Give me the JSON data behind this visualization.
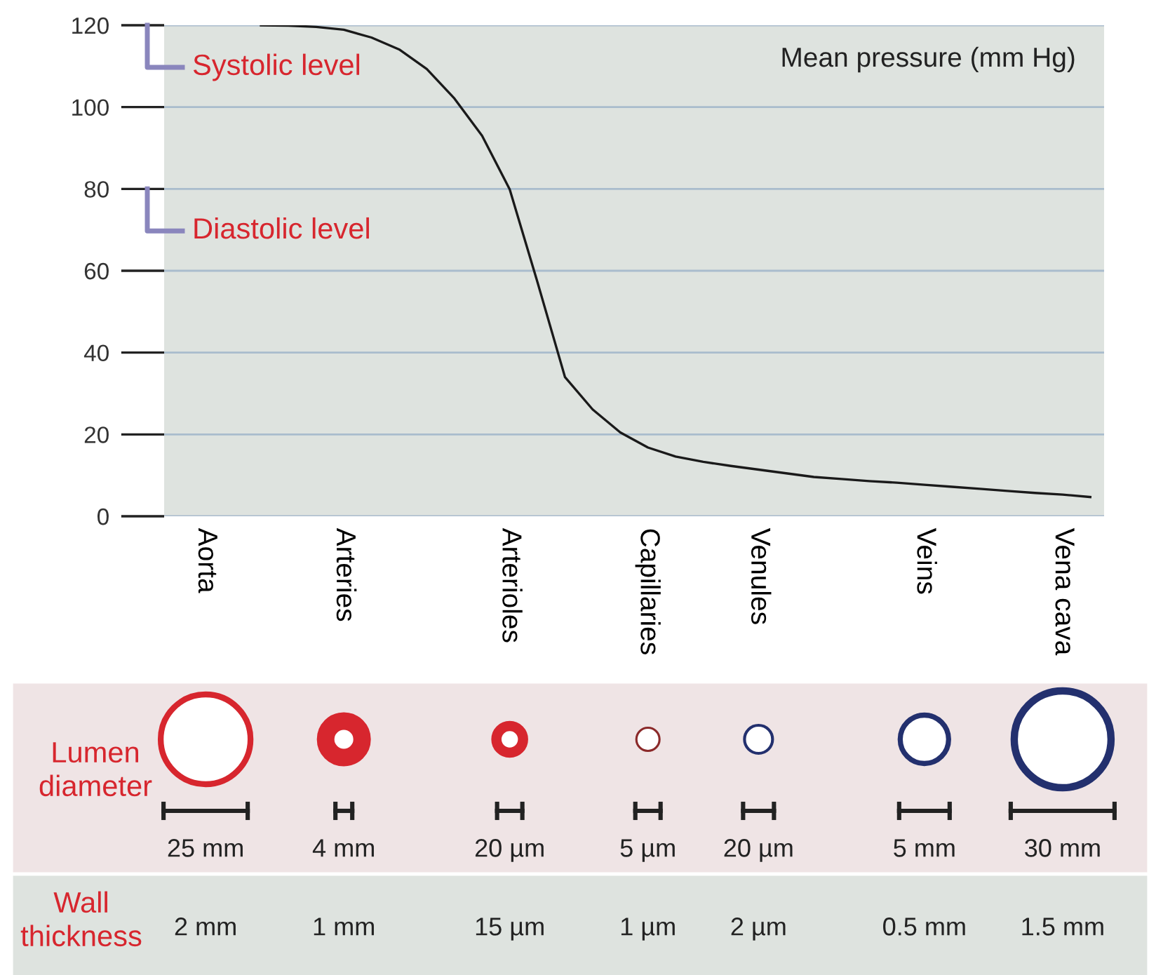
{
  "chart_data": {
    "type": "line",
    "ylabel": "Mean pressure (mm Hg)",
    "categories": [
      null,
      "Aorta",
      null,
      null,
      null,
      null,
      "Arteries",
      null,
      null,
      null,
      null,
      null,
      "Arterioles",
      null,
      null,
      null,
      null,
      "Capillaries",
      null,
      null,
      null,
      "Venules",
      null,
      null,
      null,
      null,
      null,
      "Veins",
      null,
      null,
      null,
      null,
      "Vena cava",
      null
    ],
    "series": [
      {
        "color": "#1a1a1a",
        "values": [
          null,
          null,
          null,
          120,
          119.9,
          119.6,
          118.9,
          117.0,
          114.1,
          109.3,
          102.1,
          93.0,
          79.9,
          57.3,
          34.0,
          26.1,
          20.5,
          16.8,
          14.6,
          13.3,
          12.3,
          11.4,
          10.5,
          9.6,
          9.1,
          8.6,
          8.2,
          7.7,
          7.2,
          6.7,
          6.2,
          5.7,
          5.3,
          4.7
        ]
      }
    ],
    "ylim": [
      0,
      120
    ],
    "yticks": [
      0,
      20,
      40,
      60,
      80,
      100,
      120
    ],
    "grid": "y",
    "line_style": "solid",
    "marker": "none",
    "annotations": [
      "Systolic level",
      "Diastolic level",
      "Lumen diameter",
      "25 mm",
      "4 mm",
      "20 µm",
      "5 µm",
      "20 µm",
      "5 mm",
      "30 mm",
      "Wall thickness",
      "2 mm",
      "1 mm",
      "15 µm",
      "1 µm",
      "2 µm",
      "0.5 mm",
      "1.5 mm"
    ]
  }
}
